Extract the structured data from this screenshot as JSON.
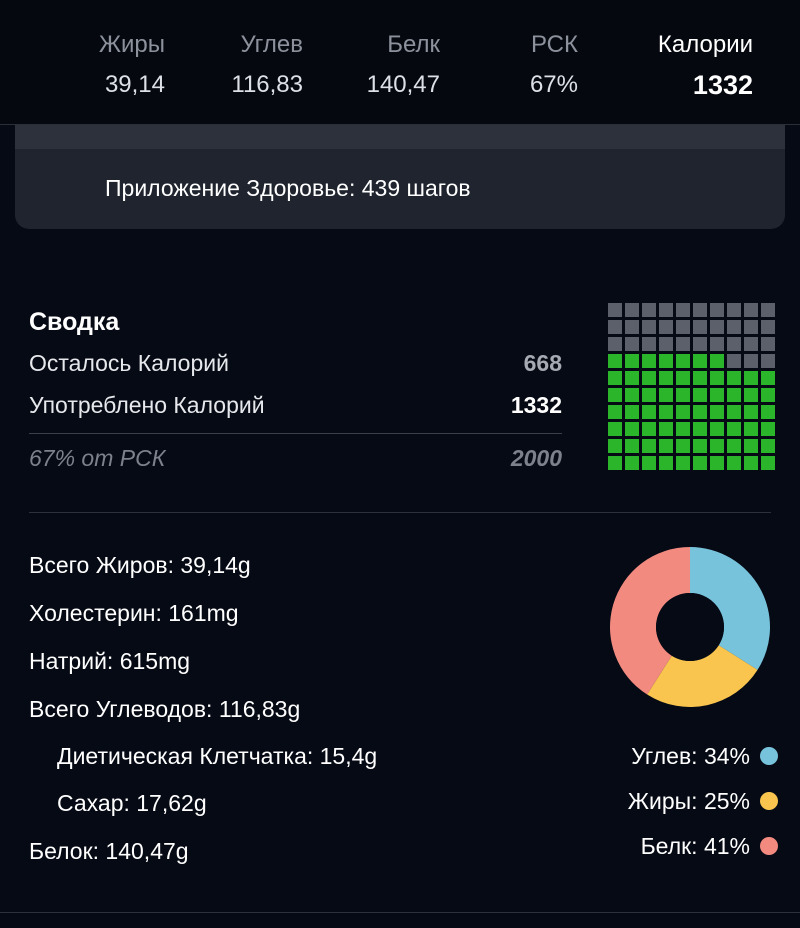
{
  "macros": [
    {
      "label": "Жиры",
      "value": "39,14"
    },
    {
      "label": "Углев",
      "value": "116,83"
    },
    {
      "label": "Белк",
      "value": "140,47"
    },
    {
      "label": "РСК",
      "value": "67%"
    },
    {
      "label": "Калории",
      "value": "1332"
    }
  ],
  "health": {
    "text": "Приложение Здоровье: 439 шагов"
  },
  "summary": {
    "title": "Сводка",
    "remaining_label": "Осталось Калорий",
    "remaining_value": "668",
    "consumed_label": "Употреблено Калорий",
    "consumed_value": "1332",
    "rsk_label": "67% от РСК",
    "rsk_value": "2000",
    "waffle": {
      "total_cells": 100,
      "filled_cells": 67,
      "filled_color": "#2bb52b",
      "empty_color": "#5c606a"
    }
  },
  "nutrients": [
    {
      "text": "Всего Жиров: 39,14g",
      "indent": false
    },
    {
      "text": "Холестерин: 161mg",
      "indent": false
    },
    {
      "text": "Натрий: 615mg",
      "indent": false
    },
    {
      "text": "Всего Углеводов: 116,83g",
      "indent": false
    },
    {
      "text": "Диетическая Клетчатка: 15,4g",
      "indent": true
    },
    {
      "text": "Сахар: 17,62g",
      "indent": true
    },
    {
      "text": "Белок: 140,47g",
      "indent": false
    }
  ],
  "chart_data": {
    "type": "pie",
    "categories": [
      "Углев",
      "Жиры",
      "Белк"
    ],
    "values": [
      34,
      25,
      41
    ],
    "colors": [
      "#78c3dc",
      "#f9c54e",
      "#f28a80"
    ],
    "legend": [
      {
        "text": "Углев: 34%",
        "color": "#78c3dc"
      },
      {
        "text": "Жиры: 25%",
        "color": "#f9c54e"
      },
      {
        "text": "Белк: 41%",
        "color": "#f28a80"
      }
    ]
  }
}
